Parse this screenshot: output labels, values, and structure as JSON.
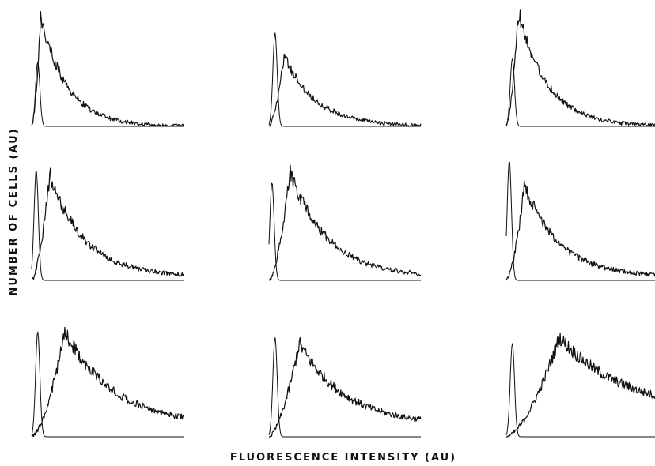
{
  "figure": {
    "ylabel": "NUMBER OF CELLS (AU)",
    "xlabel": "FLUORESCENCE INTENSITY (AU)"
  },
  "colors": {
    "ink": "#111111",
    "background": "#ffffff"
  },
  "chart_data": [
    {
      "type": "line",
      "row": 1,
      "col": 1,
      "x_range": [
        0,
        1
      ],
      "y_range": [
        0,
        1
      ],
      "series": [
        {
          "peak_x": 0.06,
          "peak_y": 0.94,
          "tail_y": 0.0
        },
        {
          "peak_x": 0.04,
          "peak_y": 0.55,
          "tail_y": 0.0
        }
      ]
    },
    {
      "type": "line",
      "row": 1,
      "col": 2,
      "x_range": [
        0,
        1
      ],
      "y_range": [
        0,
        1
      ],
      "series": [
        {
          "peak_x": 0.1,
          "peak_y": 0.6,
          "tail_y": 0.0
        },
        {
          "peak_x": 0.04,
          "peak_y": 0.8,
          "tail_y": 0.0
        }
      ]
    },
    {
      "type": "line",
      "row": 1,
      "col": 3,
      "x_range": [
        0,
        1
      ],
      "y_range": [
        0,
        1
      ],
      "series": [
        {
          "peak_x": 0.08,
          "peak_y": 0.98,
          "tail_y": 0.0
        },
        {
          "peak_x": 0.04,
          "peak_y": 0.58,
          "tail_y": 0.0
        }
      ]
    },
    {
      "type": "line",
      "row": 2,
      "col": 1,
      "x_range": [
        0,
        1
      ],
      "y_range": [
        0,
        1
      ],
      "series": [
        {
          "peak_x": 0.12,
          "peak_y": 0.86,
          "tail_y": 0.03
        },
        {
          "peak_x": 0.03,
          "peak_y": 0.9,
          "tail_y": 0.0
        }
      ]
    },
    {
      "type": "line",
      "row": 2,
      "col": 2,
      "x_range": [
        0,
        1
      ],
      "y_range": [
        0,
        1
      ],
      "series": [
        {
          "peak_x": 0.14,
          "peak_y": 0.88,
          "tail_y": 0.03
        },
        {
          "peak_x": 0.02,
          "peak_y": 0.8,
          "tail_y": 0.0
        }
      ]
    },
    {
      "type": "line",
      "row": 2,
      "col": 3,
      "x_range": [
        0,
        1
      ],
      "y_range": [
        0,
        1
      ],
      "series": [
        {
          "peak_x": 0.12,
          "peak_y": 0.78,
          "tail_y": 0.03
        },
        {
          "peak_x": 0.02,
          "peak_y": 0.98,
          "tail_y": 0.0
        }
      ]
    },
    {
      "type": "line",
      "row": 3,
      "col": 1,
      "x_range": [
        0,
        1
      ],
      "y_range": [
        0,
        1
      ],
      "series": [
        {
          "peak_x": 0.22,
          "peak_y": 0.9,
          "tail_y": 0.1
        },
        {
          "peak_x": 0.04,
          "peak_y": 0.9,
          "tail_y": 0.0
        }
      ]
    },
    {
      "type": "line",
      "row": 3,
      "col": 2,
      "x_range": [
        0,
        1
      ],
      "y_range": [
        0,
        1
      ],
      "series": [
        {
          "peak_x": 0.2,
          "peak_y": 0.8,
          "tail_y": 0.1
        },
        {
          "peak_x": 0.04,
          "peak_y": 0.85,
          "tail_y": 0.0
        }
      ]
    },
    {
      "type": "line",
      "row": 3,
      "col": 3,
      "x_range": [
        0,
        1
      ],
      "y_range": [
        0,
        1
      ],
      "series": [
        {
          "peak_x": 0.35,
          "peak_y": 0.85,
          "tail_y": 0.2
        },
        {
          "peak_x": 0.04,
          "peak_y": 0.8,
          "tail_y": 0.0
        }
      ]
    }
  ]
}
